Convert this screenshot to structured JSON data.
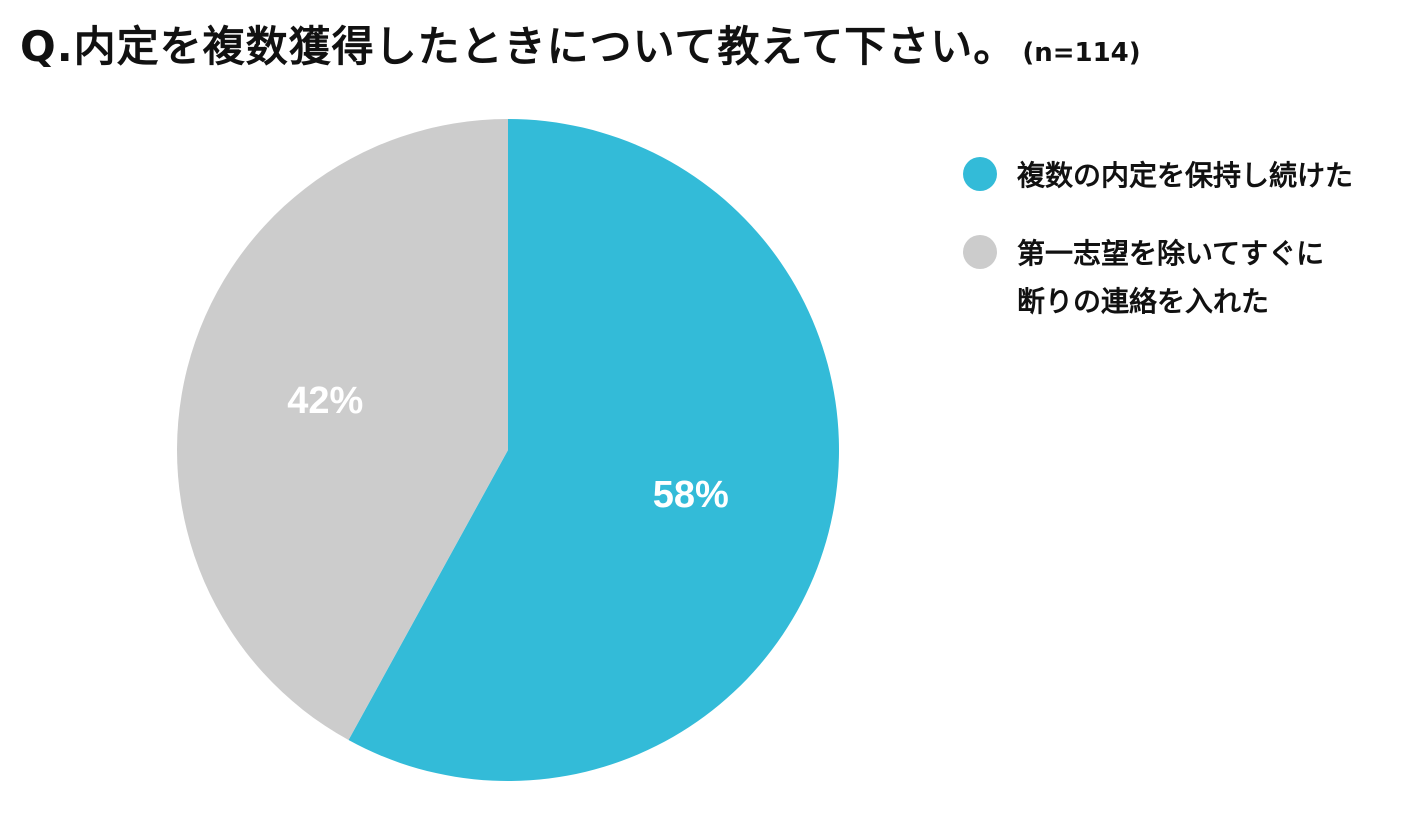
{
  "title": {
    "main": "Q.内定を複数獲得したときについて教えて下さい。",
    "sample_size": "(n=114)"
  },
  "chart_data": {
    "type": "pie",
    "title": "Q.内定を複数獲得したときについて教えて下さい。",
    "subtitle": "(n=114)",
    "legend_position": "right",
    "slices": [
      {
        "label": "複数の内定を保持し続けた",
        "value": 58,
        "display": "58%",
        "color": "#33bbd8"
      },
      {
        "label": "第一志望を除いてすぐに\n断りの連絡を入れた",
        "value": 42,
        "display": "42%",
        "color": "#cccccc"
      }
    ]
  },
  "legend": {
    "items": [
      {
        "label": "複数の内定を保持し続けた",
        "color": "#33bbd8"
      },
      {
        "label": "第一志望を除いてすぐに\n断りの連絡を入れた",
        "color": "#cccccc"
      }
    ]
  }
}
